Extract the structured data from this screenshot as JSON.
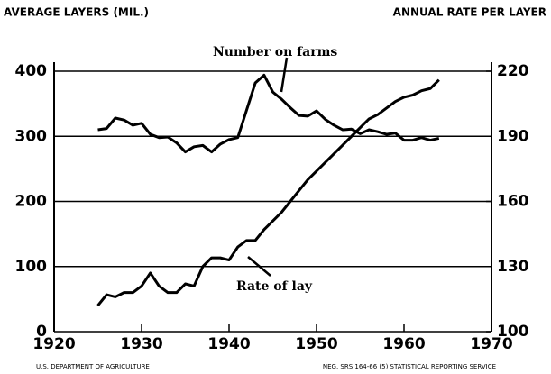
{
  "chart_data": {
    "type": "line",
    "ylabel": "AVERAGE LAYERS (MIL.)",
    "y2label": "ANNUAL RATE PER LAYER",
    "annotations": [
      "Number on farms",
      "Rate of lay"
    ],
    "footer_left": "U.S. DEPARTMENT OF AGRICULTURE",
    "footer_right": "NEG. SRS 164-66 (5)  STATISTICAL REPORTING SERVICE",
    "x": [
      1925,
      1926,
      1927,
      1928,
      1929,
      1930,
      1931,
      1932,
      1933,
      1934,
      1935,
      1936,
      1937,
      1938,
      1939,
      1940,
      1941,
      1942,
      1943,
      1944,
      1945,
      1946,
      1947,
      1948,
      1949,
      1950,
      1951,
      1952,
      1953,
      1954,
      1955,
      1956,
      1957,
      1958,
      1959,
      1960,
      1961,
      1962,
      1963,
      1964
    ],
    "series": [
      {
        "name": "Number on farms",
        "color": "#000000",
        "values": [
          310,
          312,
          328,
          325,
          317,
          320,
          303,
          298,
          299,
          290,
          276,
          284,
          286,
          276,
          288,
          295,
          298,
          340,
          382,
          394,
          368,
          357,
          344,
          332,
          331,
          339,
          326,
          317,
          310,
          311,
          304,
          310,
          307,
          303,
          305,
          294,
          294,
          298,
          294,
          297
        ]
      },
      {
        "name": "Rate of lay",
        "color": "#000000",
        "axis": "y2",
        "values": [
          112,
          117,
          116,
          118,
          118,
          121,
          127,
          121,
          118,
          118,
          122,
          121,
          130,
          134,
          134,
          133,
          139,
          142,
          142,
          147,
          151,
          155,
          160,
          165,
          170,
          174,
          178,
          182,
          186,
          190,
          194,
          198,
          200,
          203,
          206,
          208,
          209,
          211,
          212,
          216
        ]
      }
    ],
    "xlim": [
      1920,
      1970
    ],
    "xticks": [
      1920,
      1930,
      1940,
      1950,
      1960,
      1970
    ],
    "ylim": [
      0,
      400
    ],
    "yticks": [
      0,
      100,
      200,
      300,
      400
    ],
    "y2lim": [
      100,
      220
    ],
    "y2ticks": [
      100,
      130,
      160,
      190,
      220
    ],
    "grid": true
  }
}
